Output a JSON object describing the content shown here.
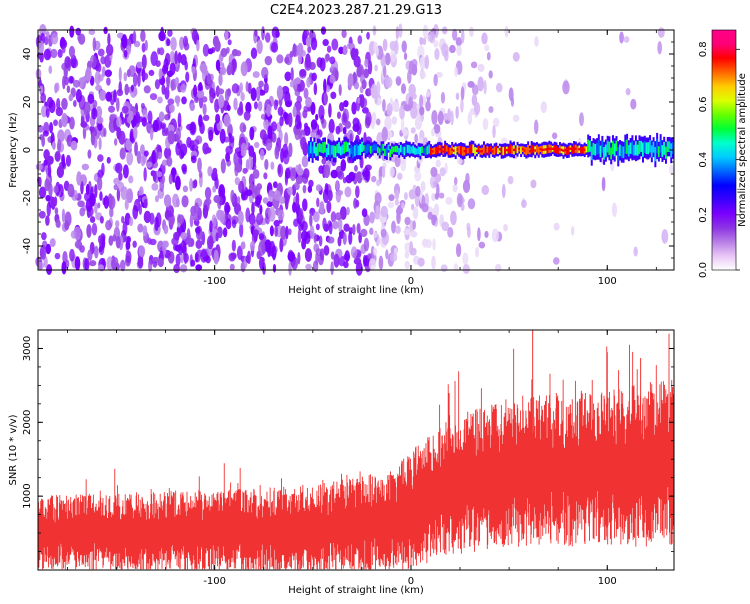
{
  "title": "C2E4.2023.287.21.29.G13",
  "chart_data": [
    {
      "type": "heatmap",
      "panel": "top",
      "xlabel": "Height of straight line (km)",
      "ylabel": "Frequency (Hz)",
      "xlim": [
        -190,
        134
      ],
      "ylim": [
        -50,
        50
      ],
      "xticks": [
        -100,
        0,
        100
      ],
      "yticks": [
        -40,
        -20,
        0,
        20,
        40
      ],
      "colorbar": {
        "label": "Normalized spectral amplitude",
        "range": [
          0.0,
          0.87
        ],
        "ticks": [
          0.0,
          0.2,
          0.4,
          0.6,
          0.8
        ],
        "colors": [
          "#ffffff",
          "#e9c6f6",
          "#b77ee6",
          "#8c33e3",
          "#7a00ff",
          "#3a00ff",
          "#0000ff",
          "#0066ff",
          "#00ccff",
          "#00ffcc",
          "#00ff33",
          "#66ff00",
          "#ddff00",
          "#ffcc00",
          "#ff6600",
          "#ff0000",
          "#ff0077",
          "#ff0088"
        ]
      },
      "noise_region": {
        "x_start": -190,
        "x_fade_start": -25,
        "x_fade_end": 60
      },
      "signal_band": {
        "x_start": -52,
        "x_end": 134,
        "center_hz": 0,
        "peak_x_start": 10,
        "peak_x_end": 90
      }
    },
    {
      "type": "line",
      "panel": "bottom",
      "xlabel": "Height of straight line (km)",
      "ylabel": "SNR (10 * v/v)",
      "xlim": [
        -190,
        134
      ],
      "ylim": [
        0,
        3250
      ],
      "xticks": [
        -100,
        0,
        100
      ],
      "yticks": [
        1000,
        2000,
        3000
      ],
      "color": "#f03232",
      "trend": {
        "x": [
          -190,
          -100,
          -50,
          -10,
          20,
          60,
          100,
          134
        ],
        "mean": [
          500,
          520,
          540,
          650,
          1150,
          1350,
          1380,
          1450
        ],
        "spread": [
          420,
          480,
          500,
          600,
          800,
          850,
          900,
          950
        ]
      },
      "spikes": [
        {
          "x": 62,
          "y": 3250
        },
        {
          "x": 100,
          "y": 2950
        },
        {
          "x": 117,
          "y": 2870
        }
      ]
    }
  ]
}
